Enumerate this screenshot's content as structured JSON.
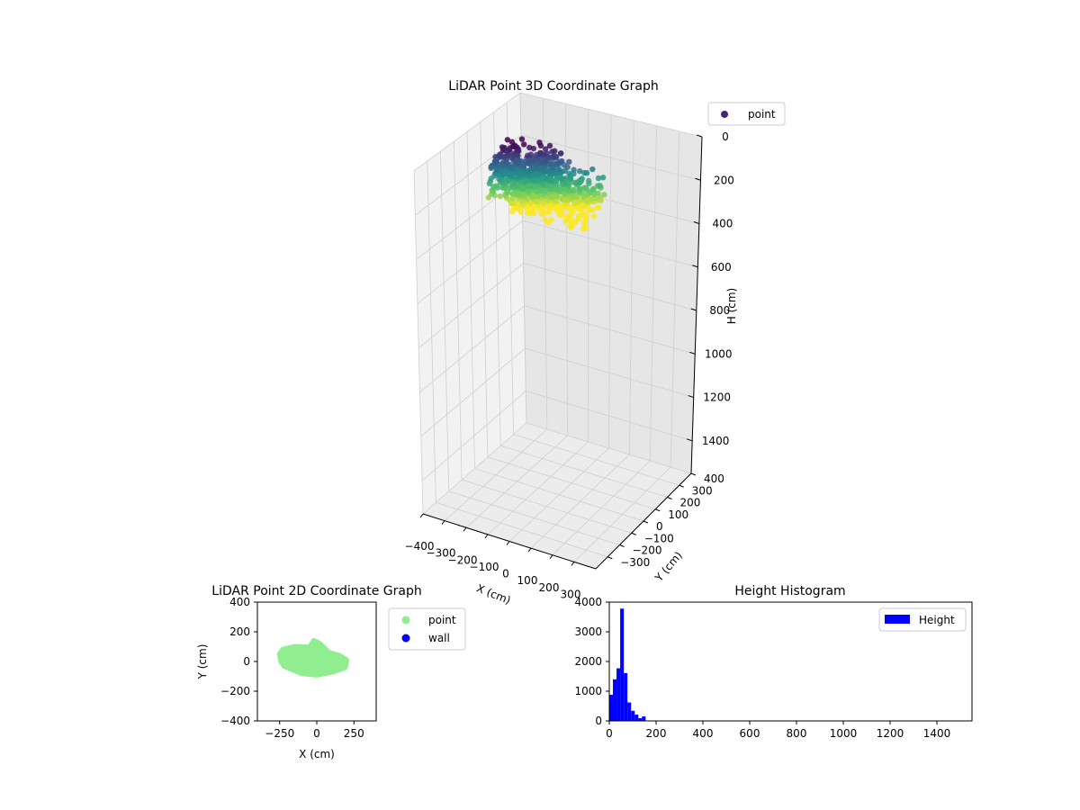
{
  "chart_data": [
    {
      "type": "scatter3d",
      "title": "LiDAR Point 3D Coordinate Graph",
      "xlabel": "X (cm)",
      "ylabel": "Y (cm)",
      "zlabel": "H (cm)",
      "xlim": [
        -400,
        400
      ],
      "ylim": [
        -400,
        400
      ],
      "zlim": [
        0,
        1550
      ],
      "z_inverted": true,
      "xticks": [
        "−400",
        "−300",
        "−200",
        "−100",
        "0",
        "100",
        "200",
        "300"
      ],
      "yticks": [
        "−300",
        "−200",
        "−100",
        "0",
        "100",
        "200",
        "300",
        "400"
      ],
      "zticks": [
        "0",
        "200",
        "400",
        "600",
        "800",
        "1000",
        "1200",
        "1400"
      ],
      "colormap": "viridis",
      "legend": [
        {
          "label": "point",
          "color": "#46237a"
        }
      ],
      "legend_position": "upper-right outside",
      "grid": true,
      "point_clusters": [
        {
          "x_range": [
            -250,
            0
          ],
          "y_range": [
            -100,
            130
          ],
          "h_range": [
            10,
            190
          ]
        },
        {
          "x_range": [
            -150,
            200
          ],
          "y_range": [
            -100,
            100
          ],
          "h_range": [
            30,
            230
          ]
        }
      ]
    },
    {
      "type": "scatter",
      "title": "LiDAR Point 2D Coordinate Graph",
      "xlabel": "X (cm)",
      "ylabel": "Y (cm)",
      "xlim": [
        -400,
        400
      ],
      "ylim": [
        -400,
        400
      ],
      "xticks": [
        "−250",
        "0",
        "250"
      ],
      "yticks": [
        "−400",
        "−200",
        "0",
        "200",
        "400"
      ],
      "series": [
        {
          "name": "point",
          "color": "#90ee90",
          "outline": [
            [
              -250,
              50
            ],
            [
              -230,
              80
            ],
            [
              -150,
              100
            ],
            [
              -50,
              95
            ],
            [
              -20,
              140
            ],
            [
              20,
              120
            ],
            [
              80,
              60
            ],
            [
              150,
              40
            ],
            [
              200,
              10
            ],
            [
              190,
              -40
            ],
            [
              100,
              -70
            ],
            [
              0,
              -90
            ],
            [
              -100,
              -80
            ],
            [
              -220,
              -30
            ],
            [
              -240,
              0
            ]
          ]
        },
        {
          "name": "wall",
          "color": "#0000ff",
          "points": []
        }
      ],
      "legend_position": "upper-right outside"
    },
    {
      "type": "histogram",
      "title": "Height Histogram",
      "xlim": [
        0,
        1550
      ],
      "ylim": [
        0,
        4000
      ],
      "xticks": [
        "0",
        "200",
        "400",
        "600",
        "800",
        "1000",
        "1200",
        "1400"
      ],
      "yticks": [
        "0",
        "1000",
        "2000",
        "3000",
        "4000"
      ],
      "bin_width": 15.5,
      "bins_start": [
        0,
        15.5,
        31,
        46.5,
        62,
        77.5,
        93,
        108.5,
        124,
        139.5
      ],
      "counts": [
        880,
        1400,
        1770,
        3780,
        1610,
        620,
        340,
        210,
        90,
        150
      ],
      "series": [
        {
          "name": "Height",
          "color": "#0000ff"
        }
      ],
      "legend_position": "upper-right"
    }
  ]
}
